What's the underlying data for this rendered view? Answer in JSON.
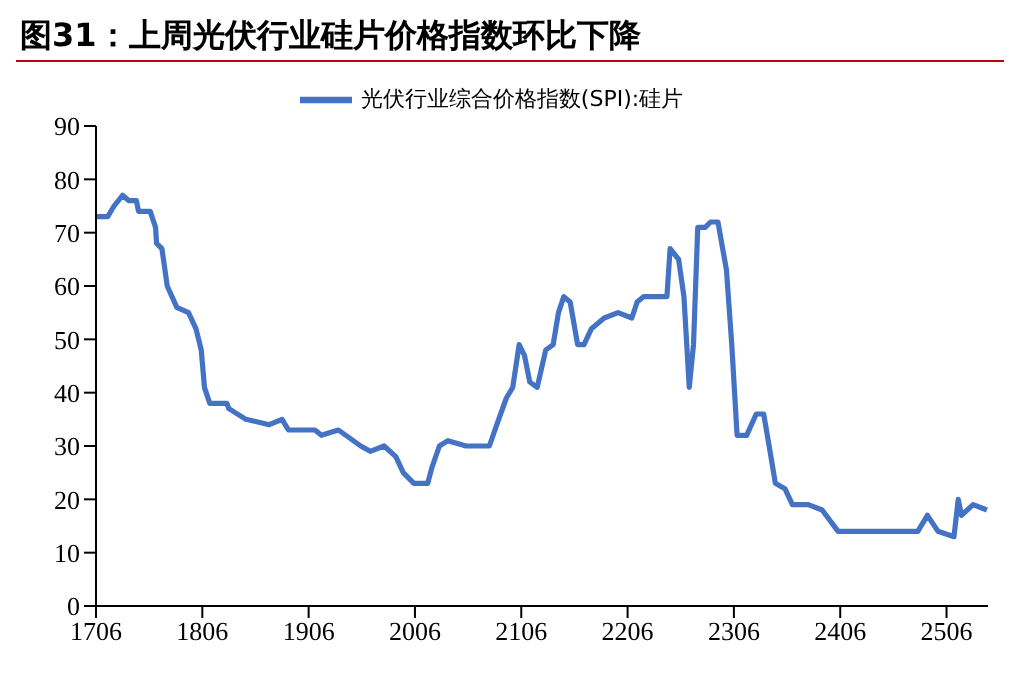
{
  "chart_data": {
    "type": "line",
    "title": "图31：上周光伏行业硅片价格指数环比下降",
    "legend": "top",
    "grid": false,
    "marker": "none",
    "line_style": "solid",
    "x": [
      1706,
      1717,
      1723,
      1731,
      1737,
      1744,
      1746,
      1757,
      1762,
      1763,
      1768,
      1773,
      1782,
      1793,
      1800,
      1805,
      1808,
      1813,
      1819,
      1829,
      1831,
      1847,
      1869,
      1881,
      1887,
      1912,
      1918,
      1934,
      1955,
      1964,
      1977,
      1988,
      1995,
      2005,
      2018,
      2022,
      2029,
      2037,
      2054,
      2067,
      2076,
      2083,
      2092,
      2098,
      2104,
      2109,
      2114,
      2121,
      2129,
      2136,
      2141,
      2146,
      2152,
      2159,
      2165,
      2172,
      2184,
      2197,
      2210,
      2215,
      2221,
      2243,
      2246,
      2254,
      2259,
      2264,
      2268,
      2272,
      2279,
      2284,
      2291,
      2299,
      2304,
      2309,
      2318,
      2327,
      2334,
      2340,
      2345,
      2354,
      2361,
      2376,
      2389,
      2404,
      2444,
      2451,
      2479,
      2488,
      2498,
      2513,
      2517,
      2520,
      2531,
      2544
    ],
    "series": [
      {
        "name": "光伏行业综合价格指数(SPI):硅片",
        "color": "#4472c4",
        "values": [
          73,
          73,
          75,
          77,
          76,
          76,
          74,
          74,
          71,
          68,
          67,
          60,
          56,
          55,
          52,
          48,
          41,
          38,
          38,
          38,
          37,
          35,
          34,
          35,
          33,
          33,
          32,
          33,
          30,
          29,
          30,
          28,
          25,
          23,
          23,
          26,
          30,
          31,
          30,
          30,
          30,
          34,
          39,
          41,
          49,
          47,
          42,
          41,
          48,
          49,
          55,
          58,
          57,
          49,
          49,
          52,
          54,
          55,
          54,
          57,
          58,
          58,
          67,
          65,
          58,
          41,
          49,
          71,
          71,
          72,
          72,
          63,
          49,
          32,
          32,
          36,
          36,
          29,
          23,
          22,
          19,
          19,
          18,
          14,
          14,
          14,
          14,
          17,
          14,
          13,
          20,
          17,
          19,
          18
        ]
      }
    ],
    "xlim": [
      1706,
      2545
    ],
    "xticks": [
      1706,
      1806,
      1906,
      2006,
      2106,
      2206,
      2306,
      2406,
      2506
    ],
    "ylim": [
      0,
      90
    ],
    "yticks": [
      0,
      10,
      20,
      30,
      40,
      50,
      60,
      70,
      80,
      90
    ]
  }
}
